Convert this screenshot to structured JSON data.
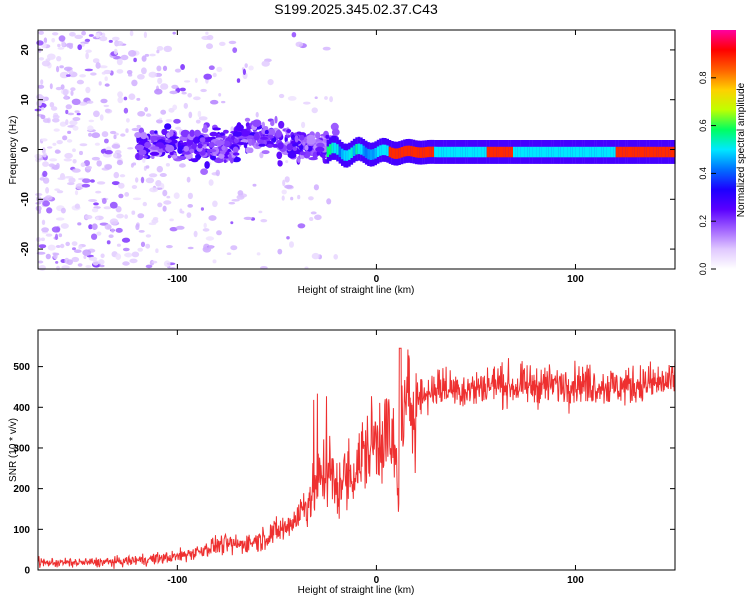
{
  "title": "S199.2025.345.02.37.C43",
  "chart_data": [
    {
      "type": "heatmap",
      "xlabel": "Height of straight line (km)",
      "ylabel": "Frequency (Hz)",
      "xlim": [
        -170,
        150
      ],
      "ylim": [
        -24,
        24
      ],
      "xticks": [
        "-100",
        "0",
        "100"
      ],
      "yticks": [
        "20",
        "10",
        "0",
        "-10",
        "-20"
      ],
      "xtick_values": [
        -100,
        0,
        100
      ],
      "ytick_values": [
        20,
        10,
        0,
        -10,
        -20
      ],
      "colorbar": {
        "label": "Normalized spectral amplitude",
        "range": [
          0,
          1
        ],
        "ticks": [
          "0.0",
          "0.2",
          "0.4",
          "0.6",
          "0.8"
        ],
        "tick_values": [
          0,
          0.2,
          0.4,
          0.6,
          0.8
        ],
        "colors": [
          "#ffffff",
          "#e0c8ff",
          "#a060ff",
          "#5a00ff",
          "#1c00ff",
          "#0070ff",
          "#00e8ff",
          "#00ff60",
          "#c0ff00",
          "#ffd000",
          "#ff6000",
          "#ff0000",
          "#ff00a0"
        ]
      },
      "features": {
        "scatter_region_x": [
          -170,
          -40
        ],
        "noise_cluster_x": [
          -120,
          -20
        ],
        "noise_cluster_freq": [
          -5,
          7
        ],
        "ridge_x": [
          -25,
          150
        ],
        "ridge_freq": -1.5,
        "peak_amplitude_segments_x": [
          [
            6,
            28
          ],
          [
            55,
            68
          ],
          [
            120,
            150
          ]
        ]
      }
    },
    {
      "type": "line",
      "xlabel": "Height of straight line (km)",
      "ylabel": "SNR (10 * v/v)",
      "xlim": [
        -170,
        150
      ],
      "ylim": [
        0,
        590
      ],
      "xticks": [
        "-100",
        "0",
        "100"
      ],
      "yticks": [
        "0",
        "100",
        "200",
        "300",
        "400",
        "500"
      ],
      "xtick_values": [
        -100,
        0,
        100
      ],
      "ytick_values": [
        0,
        100,
        200,
        300,
        400,
        500
      ],
      "color": "#ee3030",
      "series": [
        {
          "name": "SNR",
          "x": [
            -170,
            -150,
            -130,
            -110,
            -100,
            -90,
            -80,
            -70,
            -60,
            -50,
            -45,
            -40,
            -35,
            -30,
            -25,
            -20,
            -15,
            -10,
            -5,
            0,
            5,
            10,
            11,
            12,
            15,
            20,
            25,
            30,
            40,
            50,
            60,
            70,
            80,
            90,
            100,
            110,
            120,
            130,
            140,
            150
          ],
          "y": [
            18,
            18,
            20,
            28,
            33,
            45,
            62,
            62,
            72,
            95,
            105,
            130,
            165,
            210,
            260,
            200,
            230,
            250,
            295,
            320,
            345,
            265,
            160,
            360,
            395,
            425,
            430,
            450,
            445,
            445,
            460,
            450,
            455,
            455,
            460,
            455,
            450,
            455,
            460,
            460
          ]
        }
      ]
    }
  ]
}
